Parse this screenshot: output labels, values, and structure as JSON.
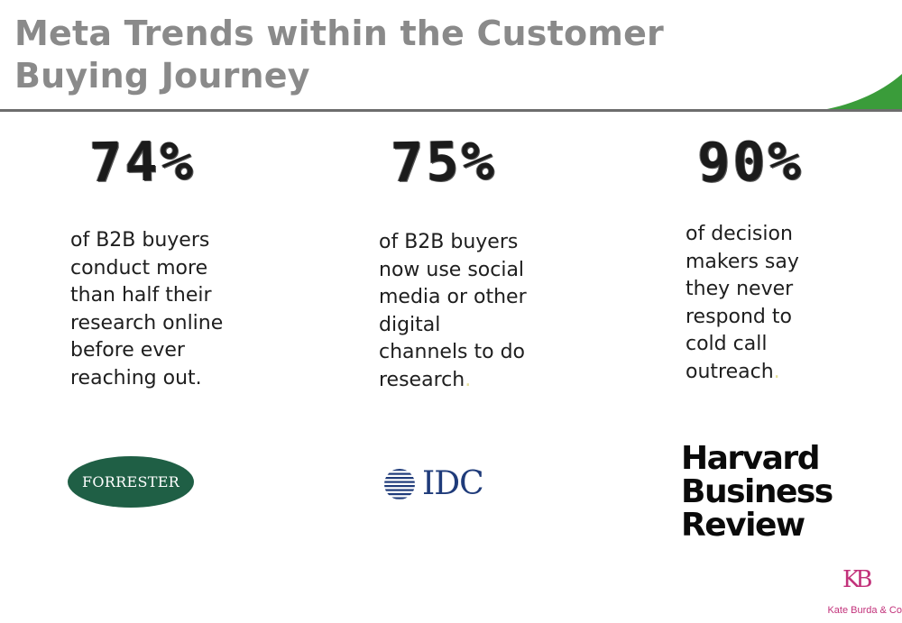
{
  "slide": {
    "title": "Meta Trends within the Customer Buying Journey",
    "accent_color": "#3a9c3a",
    "stats": [
      {
        "value": "74%",
        "lines": [
          "of B2B buyers",
          "conduct more",
          "than half their",
          "research online",
          "before ever",
          "reaching out."
        ],
        "source": "FORRESTER"
      },
      {
        "value": "75%",
        "lines": [
          "of B2B buyers",
          "now use social",
          "media or other",
          "digital",
          "channels to do",
          "research"
        ],
        "source": "IDC"
      },
      {
        "value": "90%",
        "lines": [
          "of decision",
          "makers say",
          "they never",
          "respond to",
          "cold call",
          "outreach"
        ],
        "source_lines": [
          "Harvard",
          "Business",
          "Review"
        ]
      }
    ],
    "footer": {
      "monogram": "KB",
      "brand": "Kate Burda & Co"
    }
  }
}
